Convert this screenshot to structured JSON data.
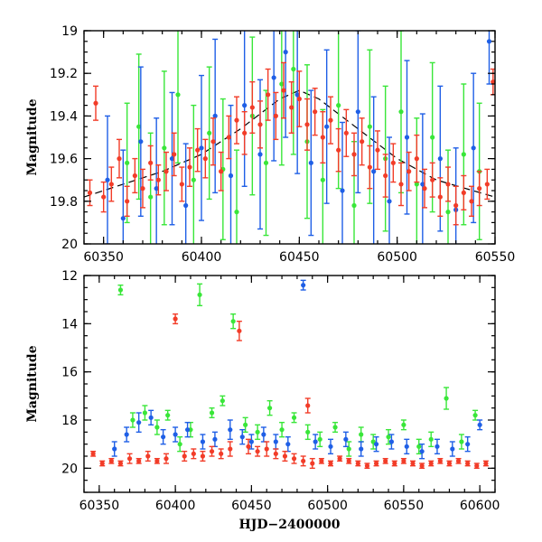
{
  "colors": {
    "green": "#39e639",
    "blue": "#1f5fe6",
    "red": "#f23c28",
    "model": "#000000"
  },
  "chart_data": [
    {
      "type": "scatter",
      "panel": "top",
      "xlabel": "",
      "ylabel": "Magnitude",
      "xlim": [
        60340,
        60550
      ],
      "ylim": [
        20,
        19
      ],
      "y_inverted": true,
      "x_ticks": [
        60350,
        60400,
        60450,
        60500,
        60550
      ],
      "y_ticks": [
        19,
        19.2,
        19.4,
        19.6,
        19.8,
        20
      ],
      "grid": false,
      "legend": "none",
      "model_curve": {
        "style": "dashed",
        "x": [
          60340,
          60360,
          60380,
          60400,
          60420,
          60440,
          60450,
          60460,
          60480,
          60500,
          60520,
          60550
        ],
        "y": [
          19.78,
          19.72,
          19.66,
          19.58,
          19.46,
          19.32,
          19.28,
          19.32,
          19.46,
          19.6,
          19.7,
          19.78
        ]
      },
      "series": [
        {
          "color": "green",
          "x": [
            60362,
            60368,
            60374,
            60381,
            60388,
            60396,
            60404,
            60411,
            60418,
            60426,
            60433,
            60441,
            60447,
            60454,
            60462,
            60470,
            60478,
            60486,
            60494,
            60502,
            60510,
            60518,
            60526,
            60534,
            60542
          ],
          "y": [
            19.62,
            19.45,
            19.78,
            19.55,
            19.3,
            19.7,
            19.48,
            19.65,
            19.85,
            19.4,
            19.62,
            19.25,
            19.18,
            19.52,
            19.7,
            19.35,
            19.82,
            19.45,
            19.6,
            19.38,
            19.72,
            19.5,
            19.85,
            19.58,
            19.66
          ],
          "err": [
            0.28,
            0.34,
            0.3,
            0.36,
            0.32,
            0.35,
            0.31,
            0.33,
            0.29,
            0.37,
            0.34,
            0.38,
            0.4,
            0.36,
            0.33,
            0.39,
            0.3,
            0.36,
            0.34,
            0.38,
            0.31,
            0.35,
            0.29,
            0.33,
            0.32
          ]
        },
        {
          "color": "blue",
          "x": [
            60352,
            60360,
            60369,
            60377,
            60385,
            60392,
            60400,
            60407,
            60415,
            60422,
            60430,
            60437,
            60443,
            60449,
            60456,
            60464,
            60472,
            60480,
            60488,
            60496,
            60505,
            60513,
            60522,
            60530,
            60539,
            60547
          ],
          "y": [
            19.7,
            19.88,
            19.52,
            19.74,
            19.6,
            19.82,
            19.55,
            19.4,
            19.68,
            19.35,
            19.58,
            19.22,
            19.1,
            19.3,
            19.62,
            19.45,
            19.75,
            19.38,
            19.66,
            19.8,
            19.5,
            19.72,
            19.6,
            19.84,
            19.55,
            19.05
          ],
          "err": [
            0.3,
            0.32,
            0.35,
            0.33,
            0.31,
            0.29,
            0.34,
            0.36,
            0.33,
            0.38,
            0.35,
            0.39,
            0.4,
            0.37,
            0.34,
            0.36,
            0.32,
            0.38,
            0.35,
            0.3,
            0.36,
            0.33,
            0.34,
            0.29,
            0.35,
            0.2
          ]
        },
        {
          "color": "red",
          "x": [
            60343,
            60346,
            60350,
            60354,
            60358,
            60362,
            60366,
            60370,
            60374,
            60378,
            60382,
            60386,
            60390,
            60394,
            60398,
            60402,
            60406,
            60410,
            60414,
            60418,
            60422,
            60426,
            60430,
            60434,
            60438,
            60442,
            60446,
            60450,
            60454,
            60458,
            60462,
            60466,
            60470,
            60474,
            60478,
            60482,
            60486,
            60490,
            60494,
            60498,
            60502,
            60506,
            60510,
            60514,
            60518,
            60522,
            60526,
            60530,
            60534,
            60538,
            60542,
            60546,
            60549
          ],
          "y": [
            19.76,
            19.34,
            19.78,
            19.72,
            19.6,
            19.8,
            19.68,
            19.74,
            19.62,
            19.7,
            19.66,
            19.58,
            19.72,
            19.64,
            19.56,
            19.6,
            19.52,
            19.66,
            19.5,
            19.42,
            19.48,
            19.36,
            19.44,
            19.3,
            19.4,
            19.28,
            19.36,
            19.32,
            19.44,
            19.38,
            19.5,
            19.42,
            19.56,
            19.48,
            19.58,
            19.52,
            19.64,
            19.56,
            19.68,
            19.62,
            19.72,
            19.66,
            19.6,
            19.74,
            19.7,
            19.78,
            19.72,
            19.82,
            19.76,
            19.8,
            19.74,
            19.72,
            19.24
          ],
          "err": [
            0.06,
            0.08,
            0.07,
            0.08,
            0.09,
            0.07,
            0.08,
            0.09,
            0.08,
            0.07,
            0.09,
            0.1,
            0.08,
            0.09,
            0.1,
            0.09,
            0.11,
            0.09,
            0.1,
            0.11,
            0.1,
            0.12,
            0.11,
            0.12,
            0.11,
            0.13,
            0.12,
            0.13,
            0.12,
            0.11,
            0.12,
            0.11,
            0.1,
            0.11,
            0.1,
            0.11,
            0.1,
            0.09,
            0.1,
            0.09,
            0.1,
            0.09,
            0.11,
            0.09,
            0.08,
            0.09,
            0.08,
            0.09,
            0.08,
            0.07,
            0.08,
            0.07,
            0.06
          ]
        }
      ]
    },
    {
      "type": "scatter",
      "panel": "bottom",
      "xlabel": "HJD−2400000",
      "ylabel": "Magnitude",
      "xlim": [
        60340,
        60610
      ],
      "ylim": [
        21,
        12
      ],
      "y_inverted": true,
      "x_ticks": [
        60350,
        60400,
        60450,
        60500,
        60550,
        60600
      ],
      "y_ticks": [
        12,
        14,
        16,
        18,
        20
      ],
      "grid": false,
      "legend": "none",
      "series": [
        {
          "color": "green",
          "x": [
            60364,
            60372,
            60380,
            60388,
            60395,
            60403,
            60410,
            60416,
            60424,
            60431,
            60438,
            60446,
            60454,
            60462,
            60470,
            60478,
            60487,
            60495,
            60505,
            60514,
            60522,
            60530,
            60540,
            60550,
            60560,
            60568,
            60578,
            60588,
            60597
          ],
          "y": [
            12.6,
            18.0,
            17.7,
            18.3,
            17.8,
            19.0,
            18.4,
            12.8,
            17.7,
            17.2,
            13.9,
            18.2,
            18.5,
            17.5,
            18.4,
            17.9,
            18.5,
            18.8,
            18.3,
            19.2,
            18.6,
            18.9,
            18.7,
            18.2,
            19.1,
            18.8,
            17.1,
            18.9,
            17.8
          ],
          "err": [
            0.2,
            0.3,
            0.3,
            0.3,
            0.2,
            0.3,
            0.3,
            0.45,
            0.2,
            0.2,
            0.3,
            0.3,
            0.3,
            0.3,
            0.3,
            0.2,
            0.3,
            0.3,
            0.2,
            0.3,
            0.3,
            0.3,
            0.3,
            0.2,
            0.3,
            0.3,
            0.45,
            0.3,
            0.2
          ]
        },
        {
          "color": "blue",
          "x": [
            60360,
            60368,
            60376,
            60384,
            60392,
            60400,
            60408,
            60418,
            60426,
            60436,
            60444,
            60450,
            60458,
            60466,
            60474,
            60484,
            60492,
            60502,
            60512,
            60522,
            60532,
            60542,
            60552,
            60562,
            60572,
            60582,
            60592,
            60600
          ],
          "y": [
            19.2,
            18.6,
            18.1,
            17.9,
            18.7,
            18.6,
            18.4,
            18.9,
            18.8,
            18.4,
            18.7,
            18.9,
            18.6,
            18.9,
            19.0,
            12.4,
            18.9,
            19.1,
            18.8,
            19.2,
            19.0,
            18.9,
            19.1,
            19.3,
            19.1,
            19.2,
            19.0,
            18.2
          ],
          "err": [
            0.3,
            0.3,
            0.4,
            0.3,
            0.3,
            0.3,
            0.3,
            0.3,
            0.3,
            0.4,
            0.3,
            0.3,
            0.3,
            0.3,
            0.3,
            0.2,
            0.3,
            0.3,
            0.3,
            0.3,
            0.3,
            0.3,
            0.3,
            0.3,
            0.3,
            0.3,
            0.3,
            0.2
          ]
        },
        {
          "color": "red",
          "x": [
            60346,
            60352,
            60358,
            60364,
            60370,
            60376,
            60382,
            60388,
            60394,
            60400,
            60406,
            60412,
            60418,
            60424,
            60430,
            60436,
            60442,
            60448,
            60454,
            60460,
            60466,
            60472,
            60478,
            60484,
            60487,
            60490,
            60496,
            60502,
            60508,
            60514,
            60520,
            60526,
            60532,
            60538,
            60544,
            60550,
            60556,
            60562,
            60568,
            60574,
            60580,
            60586,
            60592,
            60598,
            60604
          ],
          "y": [
            19.4,
            19.8,
            19.7,
            19.8,
            19.6,
            19.7,
            19.5,
            19.7,
            19.6,
            13.8,
            19.5,
            19.4,
            19.5,
            19.3,
            19.4,
            19.2,
            14.3,
            19.1,
            19.3,
            19.2,
            19.4,
            19.5,
            19.6,
            19.7,
            17.4,
            19.8,
            19.7,
            19.8,
            19.6,
            19.7,
            19.8,
            19.9,
            19.8,
            19.7,
            19.8,
            19.7,
            19.8,
            19.9,
            19.8,
            19.7,
            19.8,
            19.7,
            19.8,
            19.9,
            19.8
          ],
          "err": [
            0.1,
            0.1,
            0.1,
            0.1,
            0.2,
            0.1,
            0.2,
            0.1,
            0.2,
            0.2,
            0.2,
            0.2,
            0.2,
            0.2,
            0.2,
            0.3,
            0.4,
            0.3,
            0.2,
            0.3,
            0.2,
            0.2,
            0.2,
            0.2,
            0.3,
            0.2,
            0.1,
            0.1,
            0.1,
            0.1,
            0.1,
            0.1,
            0.1,
            0.1,
            0.1,
            0.1,
            0.1,
            0.1,
            0.1,
            0.1,
            0.1,
            0.1,
            0.1,
            0.1,
            0.1
          ]
        }
      ]
    }
  ]
}
